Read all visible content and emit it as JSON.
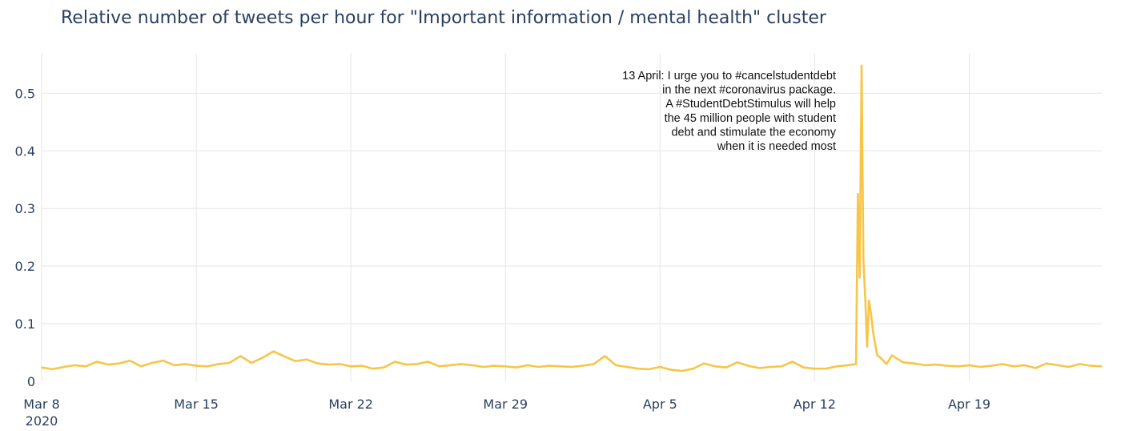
{
  "chart_data": {
    "type": "line",
    "title": "Relative number of tweets per hour for \"Important information / mental health\" cluster",
    "xlabel": "",
    "ylabel": "",
    "x_range": [
      "2020-03-08",
      "2020-04-25"
    ],
    "ylim": [
      0,
      0.57
    ],
    "grid": true,
    "line_color": "#f7c548",
    "x_ticks": [
      {
        "date": "2020-03-08",
        "label": "Mar 8",
        "sublabel": "2020"
      },
      {
        "date": "2020-03-15",
        "label": "Mar 15"
      },
      {
        "date": "2020-03-22",
        "label": "Mar 22"
      },
      {
        "date": "2020-03-29",
        "label": "Mar 29"
      },
      {
        "date": "2020-04-05",
        "label": "Apr 5"
      },
      {
        "date": "2020-04-12",
        "label": "Apr 12"
      },
      {
        "date": "2020-04-19",
        "label": "Apr 19"
      }
    ],
    "y_ticks": [
      {
        "value": 0,
        "label": "0"
      },
      {
        "value": 0.1,
        "label": "0.1"
      },
      {
        "value": 0.2,
        "label": "0.2"
      },
      {
        "value": 0.3,
        "label": "0.3"
      },
      {
        "value": 0.4,
        "label": "0.4"
      },
      {
        "value": 0.5,
        "label": "0.5"
      }
    ],
    "series": [
      {
        "points": [
          [
            "2020-03-08 00:00",
            0.024
          ],
          [
            "2020-03-08 12:00",
            0.021
          ],
          [
            "2020-03-09 00:00",
            0.025
          ],
          [
            "2020-03-09 12:00",
            0.028
          ],
          [
            "2020-03-10 00:00",
            0.026
          ],
          [
            "2020-03-10 12:00",
            0.034
          ],
          [
            "2020-03-11 00:00",
            0.029
          ],
          [
            "2020-03-11 12:00",
            0.031
          ],
          [
            "2020-03-12 00:00",
            0.036
          ],
          [
            "2020-03-12 12:00",
            0.026
          ],
          [
            "2020-03-13 00:00",
            0.032
          ],
          [
            "2020-03-13 12:00",
            0.036
          ],
          [
            "2020-03-14 00:00",
            0.028
          ],
          [
            "2020-03-14 12:00",
            0.03
          ],
          [
            "2020-03-15 00:00",
            0.027
          ],
          [
            "2020-03-15 12:00",
            0.026
          ],
          [
            "2020-03-16 00:00",
            0.03
          ],
          [
            "2020-03-16 12:00",
            0.032
          ],
          [
            "2020-03-17 00:00",
            0.044
          ],
          [
            "2020-03-17 12:00",
            0.032
          ],
          [
            "2020-03-18 00:00",
            0.041
          ],
          [
            "2020-03-18 12:00",
            0.052
          ],
          [
            "2020-03-19 00:00",
            0.043
          ],
          [
            "2020-03-19 12:00",
            0.035
          ],
          [
            "2020-03-20 00:00",
            0.038
          ],
          [
            "2020-03-20 12:00",
            0.031
          ],
          [
            "2020-03-21 00:00",
            0.029
          ],
          [
            "2020-03-21 12:00",
            0.03
          ],
          [
            "2020-03-22 00:00",
            0.026
          ],
          [
            "2020-03-22 12:00",
            0.027
          ],
          [
            "2020-03-23 00:00",
            0.022
          ],
          [
            "2020-03-23 12:00",
            0.024
          ],
          [
            "2020-03-24 00:00",
            0.034
          ],
          [
            "2020-03-24 12:00",
            0.029
          ],
          [
            "2020-03-25 00:00",
            0.03
          ],
          [
            "2020-03-25 12:00",
            0.034
          ],
          [
            "2020-03-26 00:00",
            0.026
          ],
          [
            "2020-03-26 12:00",
            0.028
          ],
          [
            "2020-03-27 00:00",
            0.03
          ],
          [
            "2020-03-27 12:00",
            0.028
          ],
          [
            "2020-03-28 00:00",
            0.025
          ],
          [
            "2020-03-28 12:00",
            0.027
          ],
          [
            "2020-03-29 00:00",
            0.026
          ],
          [
            "2020-03-29 12:00",
            0.024
          ],
          [
            "2020-03-30 00:00",
            0.028
          ],
          [
            "2020-03-30 12:00",
            0.025
          ],
          [
            "2020-03-31 00:00",
            0.027
          ],
          [
            "2020-03-31 12:00",
            0.026
          ],
          [
            "2020-04-01 00:00",
            0.025
          ],
          [
            "2020-04-01 12:00",
            0.027
          ],
          [
            "2020-04-02 00:00",
            0.03
          ],
          [
            "2020-04-02 12:00",
            0.044
          ],
          [
            "2020-04-03 00:00",
            0.028
          ],
          [
            "2020-04-03 12:00",
            0.025
          ],
          [
            "2020-04-04 00:00",
            0.022
          ],
          [
            "2020-04-04 12:00",
            0.021
          ],
          [
            "2020-04-05 00:00",
            0.025
          ],
          [
            "2020-04-05 12:00",
            0.02
          ],
          [
            "2020-04-06 00:00",
            0.018
          ],
          [
            "2020-04-06 12:00",
            0.022
          ],
          [
            "2020-04-07 00:00",
            0.031
          ],
          [
            "2020-04-07 12:00",
            0.026
          ],
          [
            "2020-04-08 00:00",
            0.024
          ],
          [
            "2020-04-08 12:00",
            0.033
          ],
          [
            "2020-04-09 00:00",
            0.027
          ],
          [
            "2020-04-09 12:00",
            0.023
          ],
          [
            "2020-04-10 00:00",
            0.025
          ],
          [
            "2020-04-10 12:00",
            0.026
          ],
          [
            "2020-04-11 00:00",
            0.034
          ],
          [
            "2020-04-11 12:00",
            0.024
          ],
          [
            "2020-04-12 00:00",
            0.022
          ],
          [
            "2020-04-12 12:00",
            0.022
          ],
          [
            "2020-04-13 00:00",
            0.026
          ],
          [
            "2020-04-13 12:00",
            0.028
          ],
          [
            "2020-04-13 21:00",
            0.03
          ],
          [
            "2020-04-13 23:00",
            0.325
          ],
          [
            "2020-04-14 01:00",
            0.18
          ],
          [
            "2020-04-14 03:00",
            0.548
          ],
          [
            "2020-04-14 05:00",
            0.21
          ],
          [
            "2020-04-14 07:00",
            0.145
          ],
          [
            "2020-04-14 09:00",
            0.06
          ],
          [
            "2020-04-14 11:00",
            0.14
          ],
          [
            "2020-04-14 13:00",
            0.12
          ],
          [
            "2020-04-14 16:00",
            0.08
          ],
          [
            "2020-04-14 20:00",
            0.045
          ],
          [
            "2020-04-15 00:00",
            0.04
          ],
          [
            "2020-04-15 06:00",
            0.03
          ],
          [
            "2020-04-15 12:00",
            0.045
          ],
          [
            "2020-04-16 00:00",
            0.033
          ],
          [
            "2020-04-16 12:00",
            0.031
          ],
          [
            "2020-04-17 00:00",
            0.028
          ],
          [
            "2020-04-17 12:00",
            0.029
          ],
          [
            "2020-04-18 00:00",
            0.027
          ],
          [
            "2020-04-18 12:00",
            0.026
          ],
          [
            "2020-04-19 00:00",
            0.028
          ],
          [
            "2020-04-19 12:00",
            0.025
          ],
          [
            "2020-04-20 00:00",
            0.027
          ],
          [
            "2020-04-20 12:00",
            0.03
          ],
          [
            "2020-04-21 00:00",
            0.026
          ],
          [
            "2020-04-21 12:00",
            0.028
          ],
          [
            "2020-04-22 00:00",
            0.023
          ],
          [
            "2020-04-22 12:00",
            0.031
          ],
          [
            "2020-04-23 00:00",
            0.028
          ],
          [
            "2020-04-23 12:00",
            0.025
          ],
          [
            "2020-04-24 00:00",
            0.03
          ],
          [
            "2020-04-24 12:00",
            0.027
          ],
          [
            "2020-04-25 00:00",
            0.026
          ]
        ]
      }
    ],
    "annotation": {
      "lines": [
        "13 April: I urge you to #cancelstudentdebt",
        "in the next #coronavirus package.",
        "A #StudentDebtStimulus will help",
        "the 45 million people with student",
        "debt and stimulate the economy",
        "when it is needed most"
      ]
    }
  }
}
